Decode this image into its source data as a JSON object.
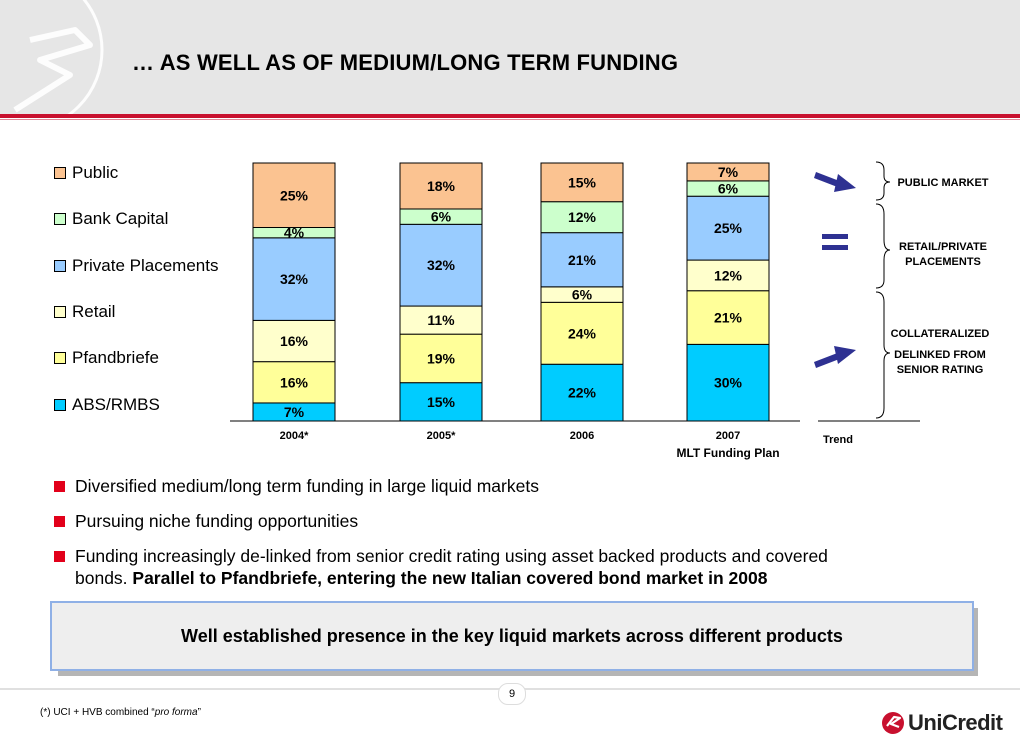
{
  "header": {
    "title": "… AS WELL AS OF MEDIUM/LONG TERM FUNDING"
  },
  "legend": [
    {
      "label": "Public",
      "color": "#fbc391"
    },
    {
      "label": "Bank Capital",
      "color": "#ccffcc"
    },
    {
      "label": "Private Placements",
      "color": "#99ccff"
    },
    {
      "label": "Retail",
      "color": "#ffffcc"
    },
    {
      "label": "Pfandbriefe",
      "color": "#ffff99"
    },
    {
      "label": "ABS/RMBS",
      "color": "#00ccff"
    }
  ],
  "chart_data": {
    "type": "bar",
    "stacked": true,
    "categories": [
      "2004*",
      "2005*",
      "2006",
      "2007"
    ],
    "category_sublabels": [
      "",
      "",
      "",
      "MLT Funding Plan"
    ],
    "series": [
      {
        "name": "ABS/RMBS",
        "color": "#00ccff",
        "values": [
          7,
          15,
          22,
          30
        ]
      },
      {
        "name": "Pfandbriefe",
        "color": "#ffff99",
        "values": [
          16,
          19,
          24,
          21
        ]
      },
      {
        "name": "Retail",
        "color": "#ffffcc",
        "values": [
          16,
          11,
          6,
          12
        ]
      },
      {
        "name": "Private Placements",
        "color": "#99ccff",
        "values": [
          32,
          32,
          21,
          25
        ]
      },
      {
        "name": "Bank Capital",
        "color": "#ccffcc",
        "values": [
          4,
          6,
          12,
          6
        ]
      },
      {
        "name": "Public",
        "color": "#fbc391",
        "values": [
          25,
          18,
          15,
          7
        ]
      }
    ],
    "value_suffix": "%",
    "ylim": [
      0,
      100
    ]
  },
  "trend": {
    "axis_label": "Trend",
    "public_label": "PUBLIC MARKET",
    "retail_label_1": "RETAIL/PRIVATE",
    "retail_label_2": "PLACEMENTS",
    "collat_label_1": "COLLATERALIZED",
    "collat_label_2": "DELINKED FROM",
    "collat_label_3": "SENIOR RATING",
    "arrow_color": "#2e3192"
  },
  "bullets": {
    "b1": "Diversified medium/long term funding in large liquid markets",
    "b2": "Pursuing niche funding opportunities",
    "b3_line1": "Funding increasingly de-linked from senior credit rating using asset backed products and covered",
    "b3_line2_plain": "bonds. ",
    "b3_line2_bold": "Parallel to Pfandbriefe, entering the new Italian covered bond market in 2008"
  },
  "callout": "Well established presence in the key liquid markets across different products",
  "footer": {
    "page": "9",
    "footnote_prefix": "(*) UCI + HVB combined “",
    "footnote_italic": "pro forma",
    "footnote_suffix": "”",
    "brand": "UniCredit"
  },
  "colors": {
    "accent_red": "#c8102e",
    "bullet_red": "#e2001a",
    "callout_border": "#8fb0e6"
  }
}
